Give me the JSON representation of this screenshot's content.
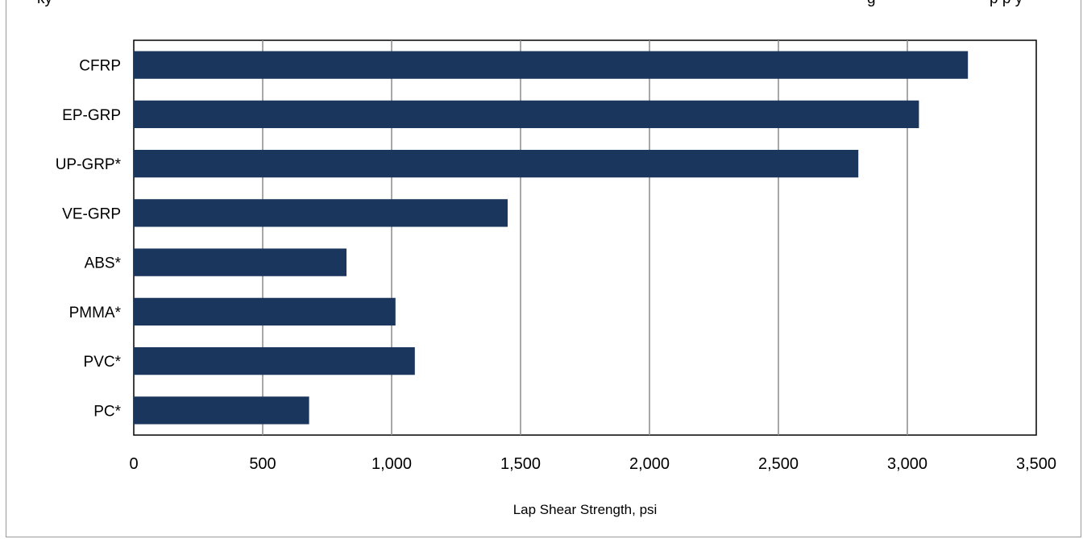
{
  "chart_data": {
    "type": "bar",
    "orientation": "horizontal",
    "categories": [
      "CFRP",
      "EP-GRP",
      "UP-GRP*",
      "VE-GRP",
      "ABS*",
      "PMMA*",
      "PVC*",
      "PC*"
    ],
    "values": [
      3235,
      3045,
      2810,
      1450,
      825,
      1015,
      1090,
      680
    ],
    "xlabel": "Lap Shear Strength, psi",
    "ylabel": "",
    "xlim": [
      0,
      3500
    ],
    "xticks": [
      0,
      500,
      1000,
      1500,
      2000,
      2500,
      3000,
      3500
    ],
    "xtick_labels": [
      "0",
      "500",
      "1,000",
      "1,500",
      "2,000",
      "2,500",
      "3,000",
      "3,500"
    ],
    "grid": "vertical",
    "legend": "none",
    "bar_color": "#1b365d"
  }
}
